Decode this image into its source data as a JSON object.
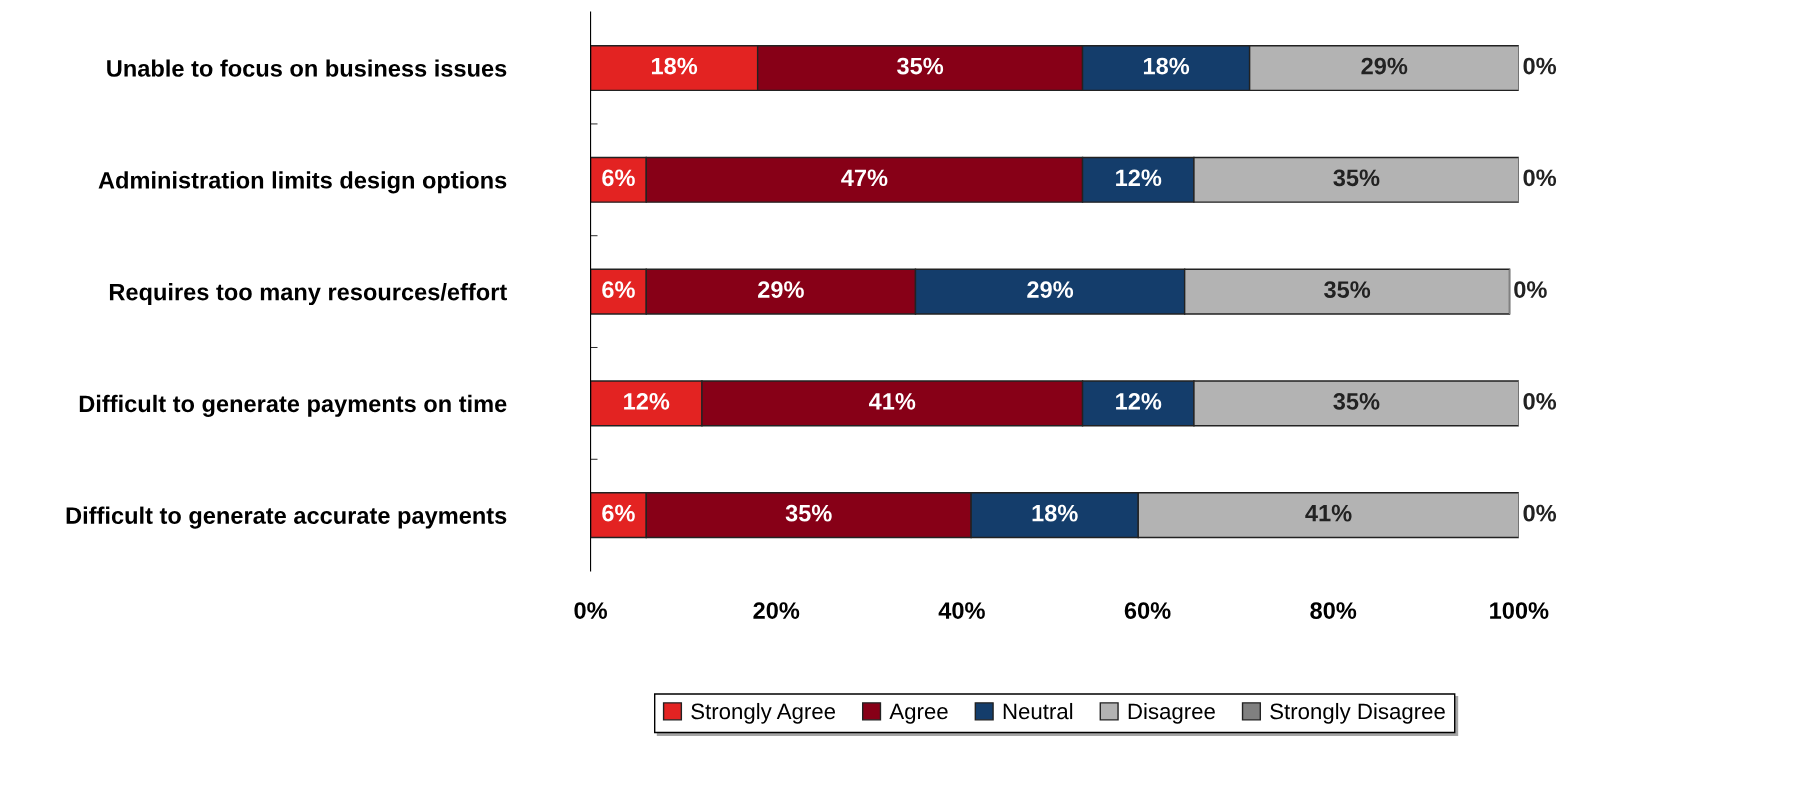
{
  "chart_data": {
    "type": "bar",
    "orientation": "horizontal",
    "stacked": true,
    "categories": [
      "Unable to focus on business issues",
      "Administration limits design options",
      "Requires too many resources/effort",
      "Difficult to generate payments on time",
      "Difficult to generate accurate payments"
    ],
    "series": [
      {
        "name": "Strongly Agree",
        "color": "#e32322",
        "values": [
          18,
          6,
          6,
          12,
          6
        ],
        "value_labels": [
          "18%",
          "6%",
          "6%",
          "12%",
          "6%"
        ]
      },
      {
        "name": "Agree",
        "color": "#870017",
        "values": [
          35,
          47,
          29,
          41,
          35
        ],
        "value_labels": [
          "35%",
          "47%",
          "29%",
          "41%",
          "35%"
        ]
      },
      {
        "name": "Neutral",
        "color": "#143d6b",
        "values": [
          18,
          12,
          29,
          12,
          18
        ],
        "value_labels": [
          "18%",
          "12%",
          "29%",
          "12%",
          "18%"
        ]
      },
      {
        "name": "Disagree",
        "color": "#b3b3b3",
        "values": [
          29,
          35,
          35,
          35,
          41
        ],
        "value_labels": [
          "29%",
          "35%",
          "35%",
          "35%",
          "41%"
        ]
      },
      {
        "name": "Strongly Disagree",
        "color": "#808080",
        "values": [
          0,
          0,
          0,
          0,
          0
        ],
        "value_labels": [
          "0%",
          "0%",
          "0%",
          "0%",
          "0%"
        ]
      }
    ],
    "xlim": [
      0,
      100
    ],
    "xticks": [
      {
        "value": 0,
        "label": "0%"
      },
      {
        "value": 20,
        "label": "20%"
      },
      {
        "value": 40,
        "label": "40%"
      },
      {
        "value": 60,
        "label": "60%"
      },
      {
        "value": 80,
        "label": "80%"
      },
      {
        "value": 100,
        "label": "100%"
      }
    ],
    "grid": false,
    "legend": "bottom"
  }
}
